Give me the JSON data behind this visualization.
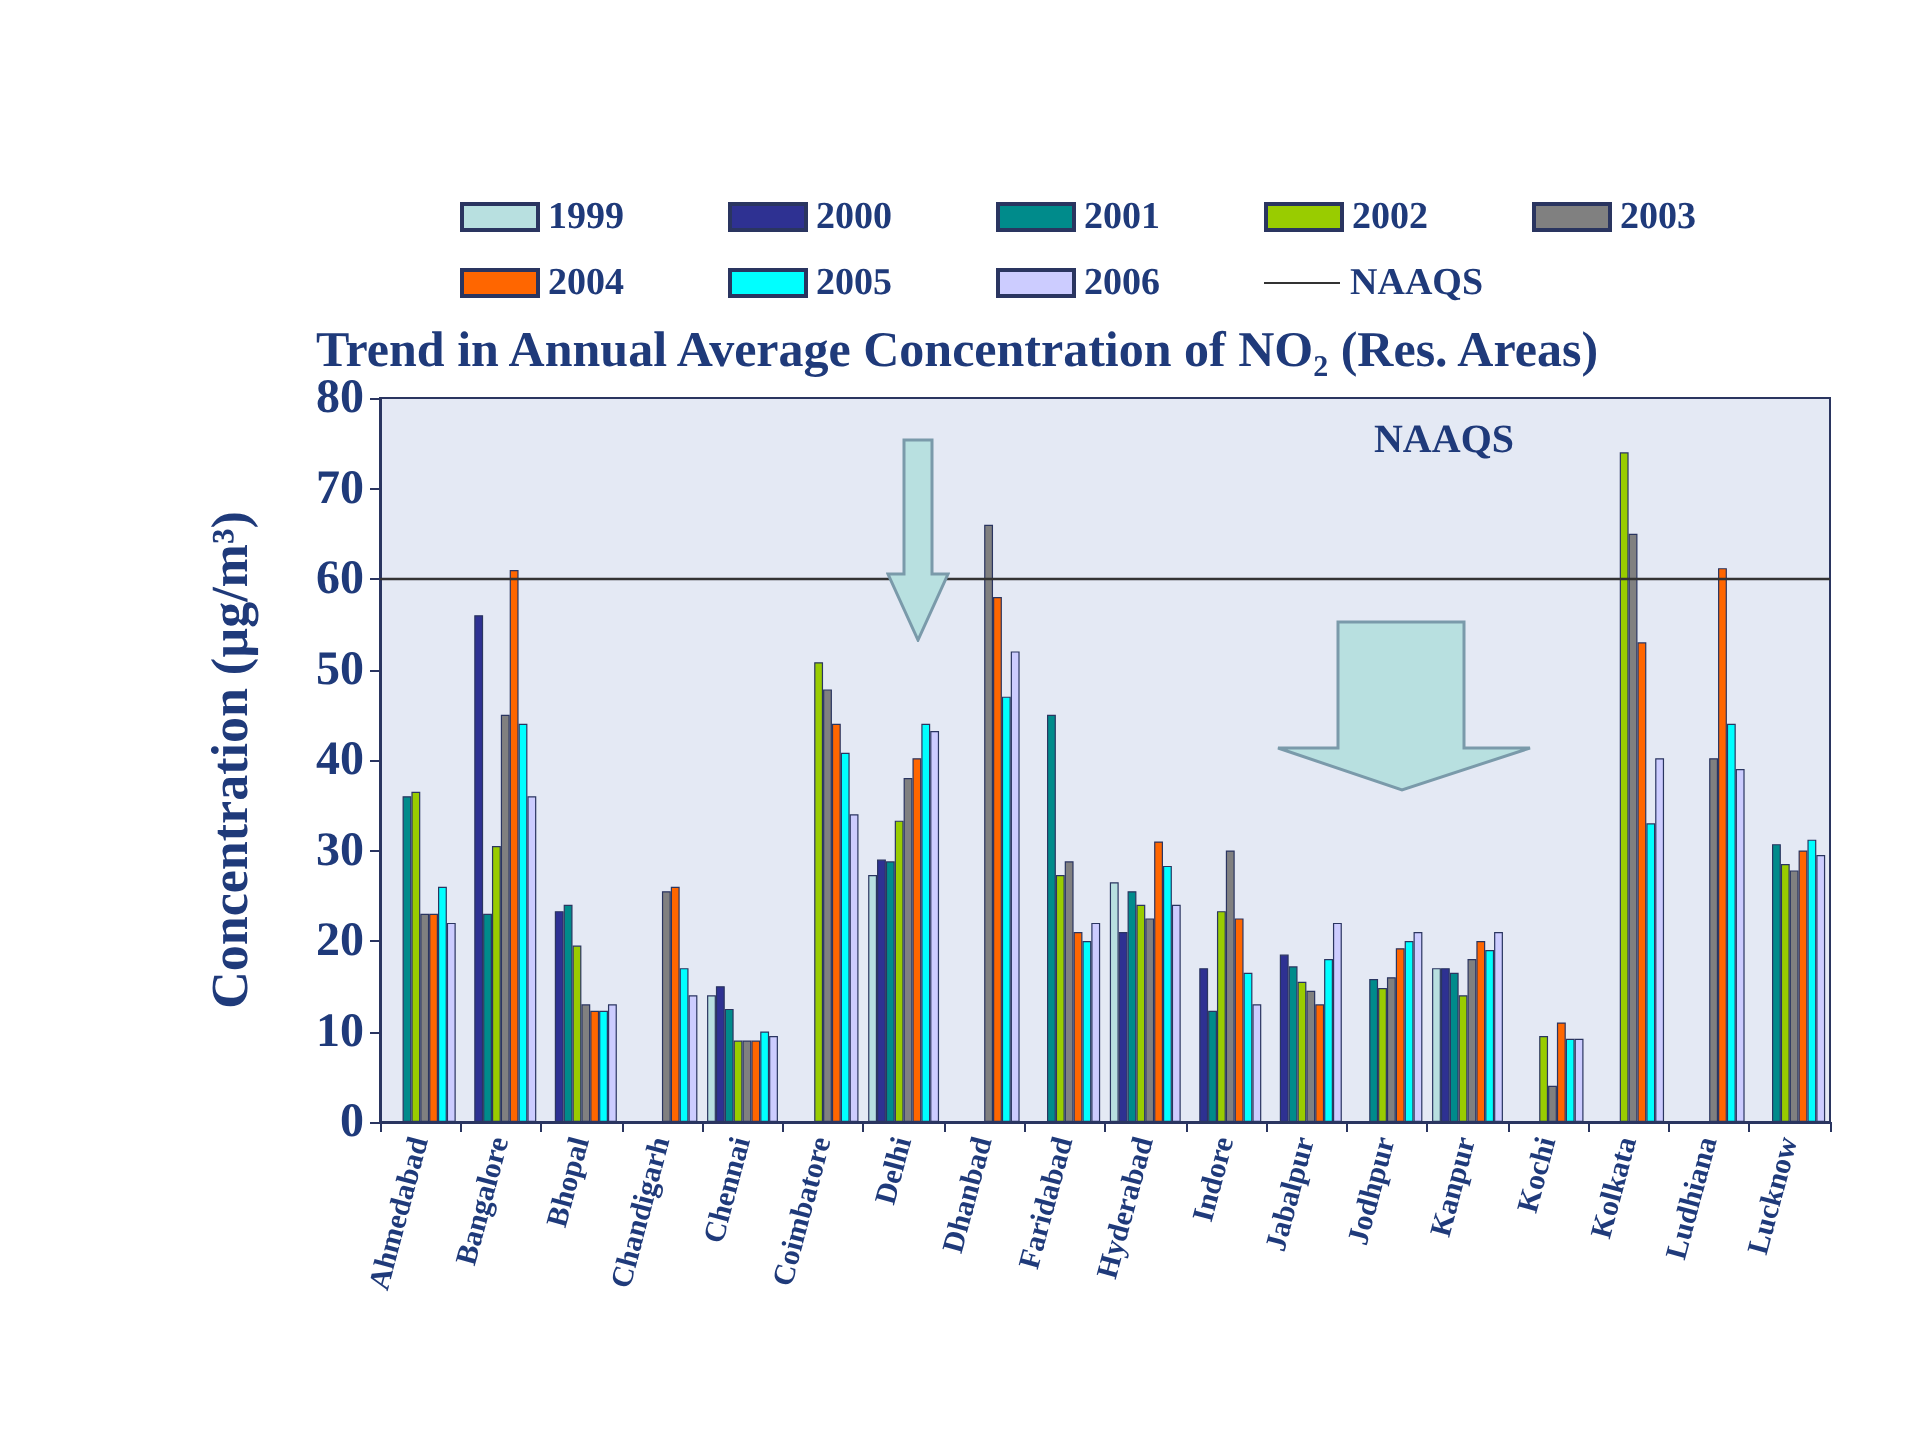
{
  "chart_data": {
    "type": "bar",
    "title": "Trend in Annual Average Concentration of NO₂ (Res. Areas)",
    "ylabel": "Concentration (µg/m³)",
    "categories": [
      "Ahmedabad",
      "Bangalore",
      "Bhopal",
      "Chandigarh",
      "Chennai",
      "Coimbatore",
      "Delhi",
      "Dhanbad",
      "Faridabad",
      "Hyderabad",
      "Indore",
      "Jabalpur",
      "Jodhpur",
      "Kanpur",
      "Kochi",
      "Kolkata",
      "Ludhiana",
      "Lucknow"
    ],
    "series": [
      {
        "name": "1999",
        "color": "#b8e0e0",
        "values": [
          null,
          null,
          null,
          null,
          14,
          null,
          27.3,
          null,
          null,
          26.5,
          null,
          null,
          null,
          17,
          null,
          null,
          null,
          null
        ]
      },
      {
        "name": "2000",
        "color": "#2e3192",
        "values": [
          null,
          56,
          23.3,
          null,
          15,
          null,
          29,
          null,
          null,
          21,
          17,
          18.5,
          null,
          17,
          null,
          null,
          null,
          null
        ]
      },
      {
        "name": "2001",
        "color": "#008b8b",
        "values": [
          36,
          23,
          24,
          null,
          12.5,
          null,
          28.8,
          null,
          45,
          25.5,
          12.3,
          17.2,
          15.8,
          16.5,
          null,
          null,
          null,
          30.7
        ]
      },
      {
        "name": "2002",
        "color": "#99cc00",
        "values": [
          36.5,
          30.5,
          19.5,
          null,
          9,
          50.8,
          33.3,
          null,
          27.3,
          24,
          23.3,
          15.5,
          14.8,
          14,
          9.5,
          74,
          null,
          28.5
        ]
      },
      {
        "name": "2003",
        "color": "#808080",
        "values": [
          23,
          45,
          13,
          25.5,
          9,
          47.8,
          38,
          66,
          28.8,
          22.5,
          30,
          14.5,
          16,
          18,
          4,
          65,
          40.2,
          27.8
        ]
      },
      {
        "name": "2004",
        "color": "#ff6600",
        "values": [
          23,
          61,
          12.3,
          26,
          9,
          44,
          40.2,
          58,
          21,
          31,
          22.5,
          13,
          19.2,
          20,
          11,
          53,
          61.2,
          30
        ]
      },
      {
        "name": "2005",
        "color": "#00ffff",
        "values": [
          26,
          44,
          12.3,
          17,
          10,
          40.8,
          44,
          47,
          20,
          28.3,
          16.5,
          18,
          20,
          19,
          9.2,
          33,
          44,
          31.2
        ]
      },
      {
        "name": "2006",
        "color": "#ccccff",
        "values": [
          22,
          36,
          13,
          14,
          9.5,
          34,
          43.2,
          52,
          22,
          24,
          13,
          22,
          21,
          21,
          9.2,
          40.2,
          39,
          29.5
        ]
      }
    ],
    "ref_lines": [
      {
        "axis": "y",
        "value": 60,
        "label": "NAAQS",
        "color": "#333333"
      }
    ],
    "annotations": [
      "NAAQS"
    ],
    "ylim": [
      0,
      80
    ],
    "yticks": [
      0,
      10,
      20,
      30,
      40,
      50,
      60,
      70,
      80
    ],
    "legend": "top",
    "grid": false
  }
}
